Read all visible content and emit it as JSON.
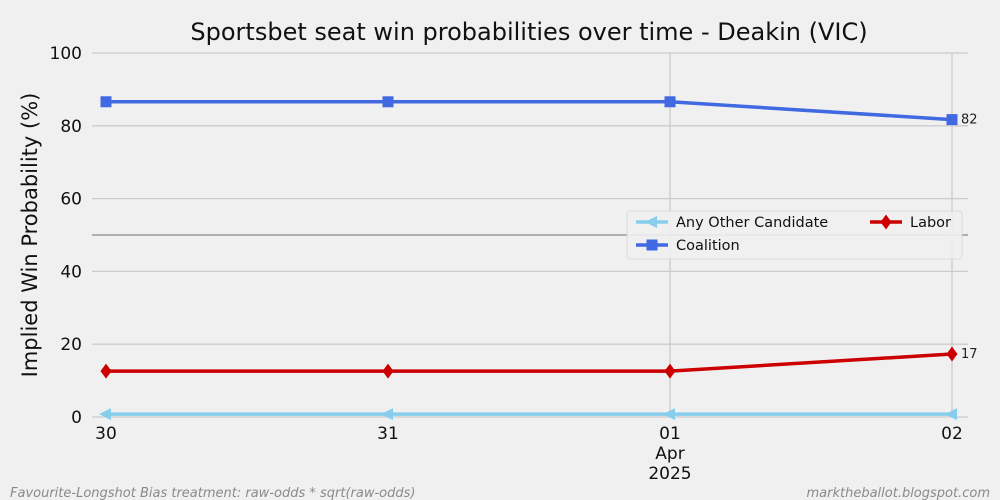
{
  "chart_data": {
    "type": "line",
    "title": "Sportsbet seat win probabilities over time - Deakin (VIC)",
    "xlabel": "",
    "ylabel": "Implied Win Probability (%)",
    "x": [
      "2025-03-30",
      "2025-03-31",
      "2025-04-01",
      "2025-04-02"
    ],
    "x_tick_labels": [
      "30",
      "31",
      "01",
      "02"
    ],
    "x_tick_sublabels": {
      "2": [
        "Apr",
        "2025"
      ]
    },
    "ylim": [
      0,
      100
    ],
    "y_ticks": [
      0,
      20,
      40,
      60,
      80,
      100
    ],
    "grid": true,
    "reference_line": 50,
    "series": [
      {
        "name": "Any Other Candidate",
        "values": [
          0.8,
          0.8,
          0.8,
          0.8
        ],
        "color": "#87ceeb",
        "marker": "triangle-left"
      },
      {
        "name": "Coalition",
        "values": [
          86.6,
          86.6,
          86.6,
          81.7
        ],
        "color": "#4169e1",
        "marker": "square",
        "end_label": "82"
      },
      {
        "name": "Labor",
        "values": [
          12.6,
          12.6,
          12.6,
          17.3
        ],
        "color": "#cc0000",
        "marker": "diamond",
        "end_label": "17"
      }
    ],
    "legend": {
      "placement": "center-right",
      "order": [
        "Any Other Candidate",
        "Labor",
        "Coalition"
      ]
    }
  },
  "footer": {
    "left": "Favourite-Longshot Bias treatment: raw-odds * sqrt(raw-odds)",
    "right": "marktheballot.blogspot.com"
  }
}
